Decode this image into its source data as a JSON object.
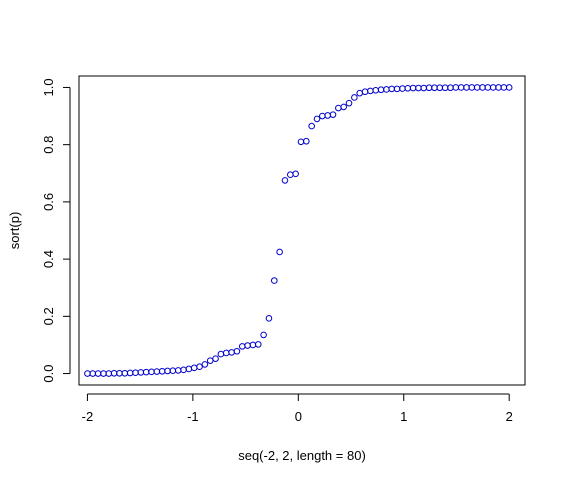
{
  "chart_data": {
    "type": "scatter",
    "title": "",
    "xlabel": "seq(-2, 2, length = 80)",
    "ylabel": "sort(p)",
    "xlim": [
      -2.08,
      2.15
    ],
    "ylim": [
      -0.04,
      1.04
    ],
    "x_ticks": [
      -2,
      -1,
      0,
      1,
      2
    ],
    "y_ticks": [
      0.0,
      0.2,
      0.4,
      0.6,
      0.8,
      1.0
    ],
    "x_tick_labels": [
      "-2",
      "-1",
      "0",
      "1",
      "2"
    ],
    "y_tick_labels": [
      "0.0",
      "0.2",
      "0.4",
      "0.6",
      "0.8",
      "1.0"
    ],
    "grid": false,
    "marker": "open-circle",
    "point_color": "#0000cc",
    "series": [
      {
        "x_range": [
          -2,
          2
        ],
        "length": 80,
        "values": [
          0.0,
          0.0,
          0.0,
          0.0,
          0.0,
          0.001,
          0.001,
          0.001,
          0.002,
          0.003,
          0.004,
          0.005,
          0.006,
          0.007,
          0.008,
          0.009,
          0.01,
          0.011,
          0.013,
          0.016,
          0.02,
          0.024,
          0.032,
          0.045,
          0.052,
          0.068,
          0.072,
          0.074,
          0.078,
          0.095,
          0.098,
          0.1,
          0.102,
          0.135,
          0.193,
          0.325,
          0.425,
          0.675,
          0.695,
          0.698,
          0.81,
          0.812,
          0.865,
          0.89,
          0.9,
          0.902,
          0.905,
          0.928,
          0.932,
          0.945,
          0.965,
          0.98,
          0.985,
          0.988,
          0.99,
          0.992,
          0.993,
          0.995,
          0.995,
          0.996,
          0.997,
          0.998,
          0.998,
          0.998,
          0.999,
          0.999,
          0.999,
          0.999,
          0.999,
          1.0,
          1.0,
          1.0,
          1.0,
          1.0,
          1.0,
          1.0,
          1.0,
          1.0,
          1.0,
          1.0
        ]
      }
    ]
  }
}
